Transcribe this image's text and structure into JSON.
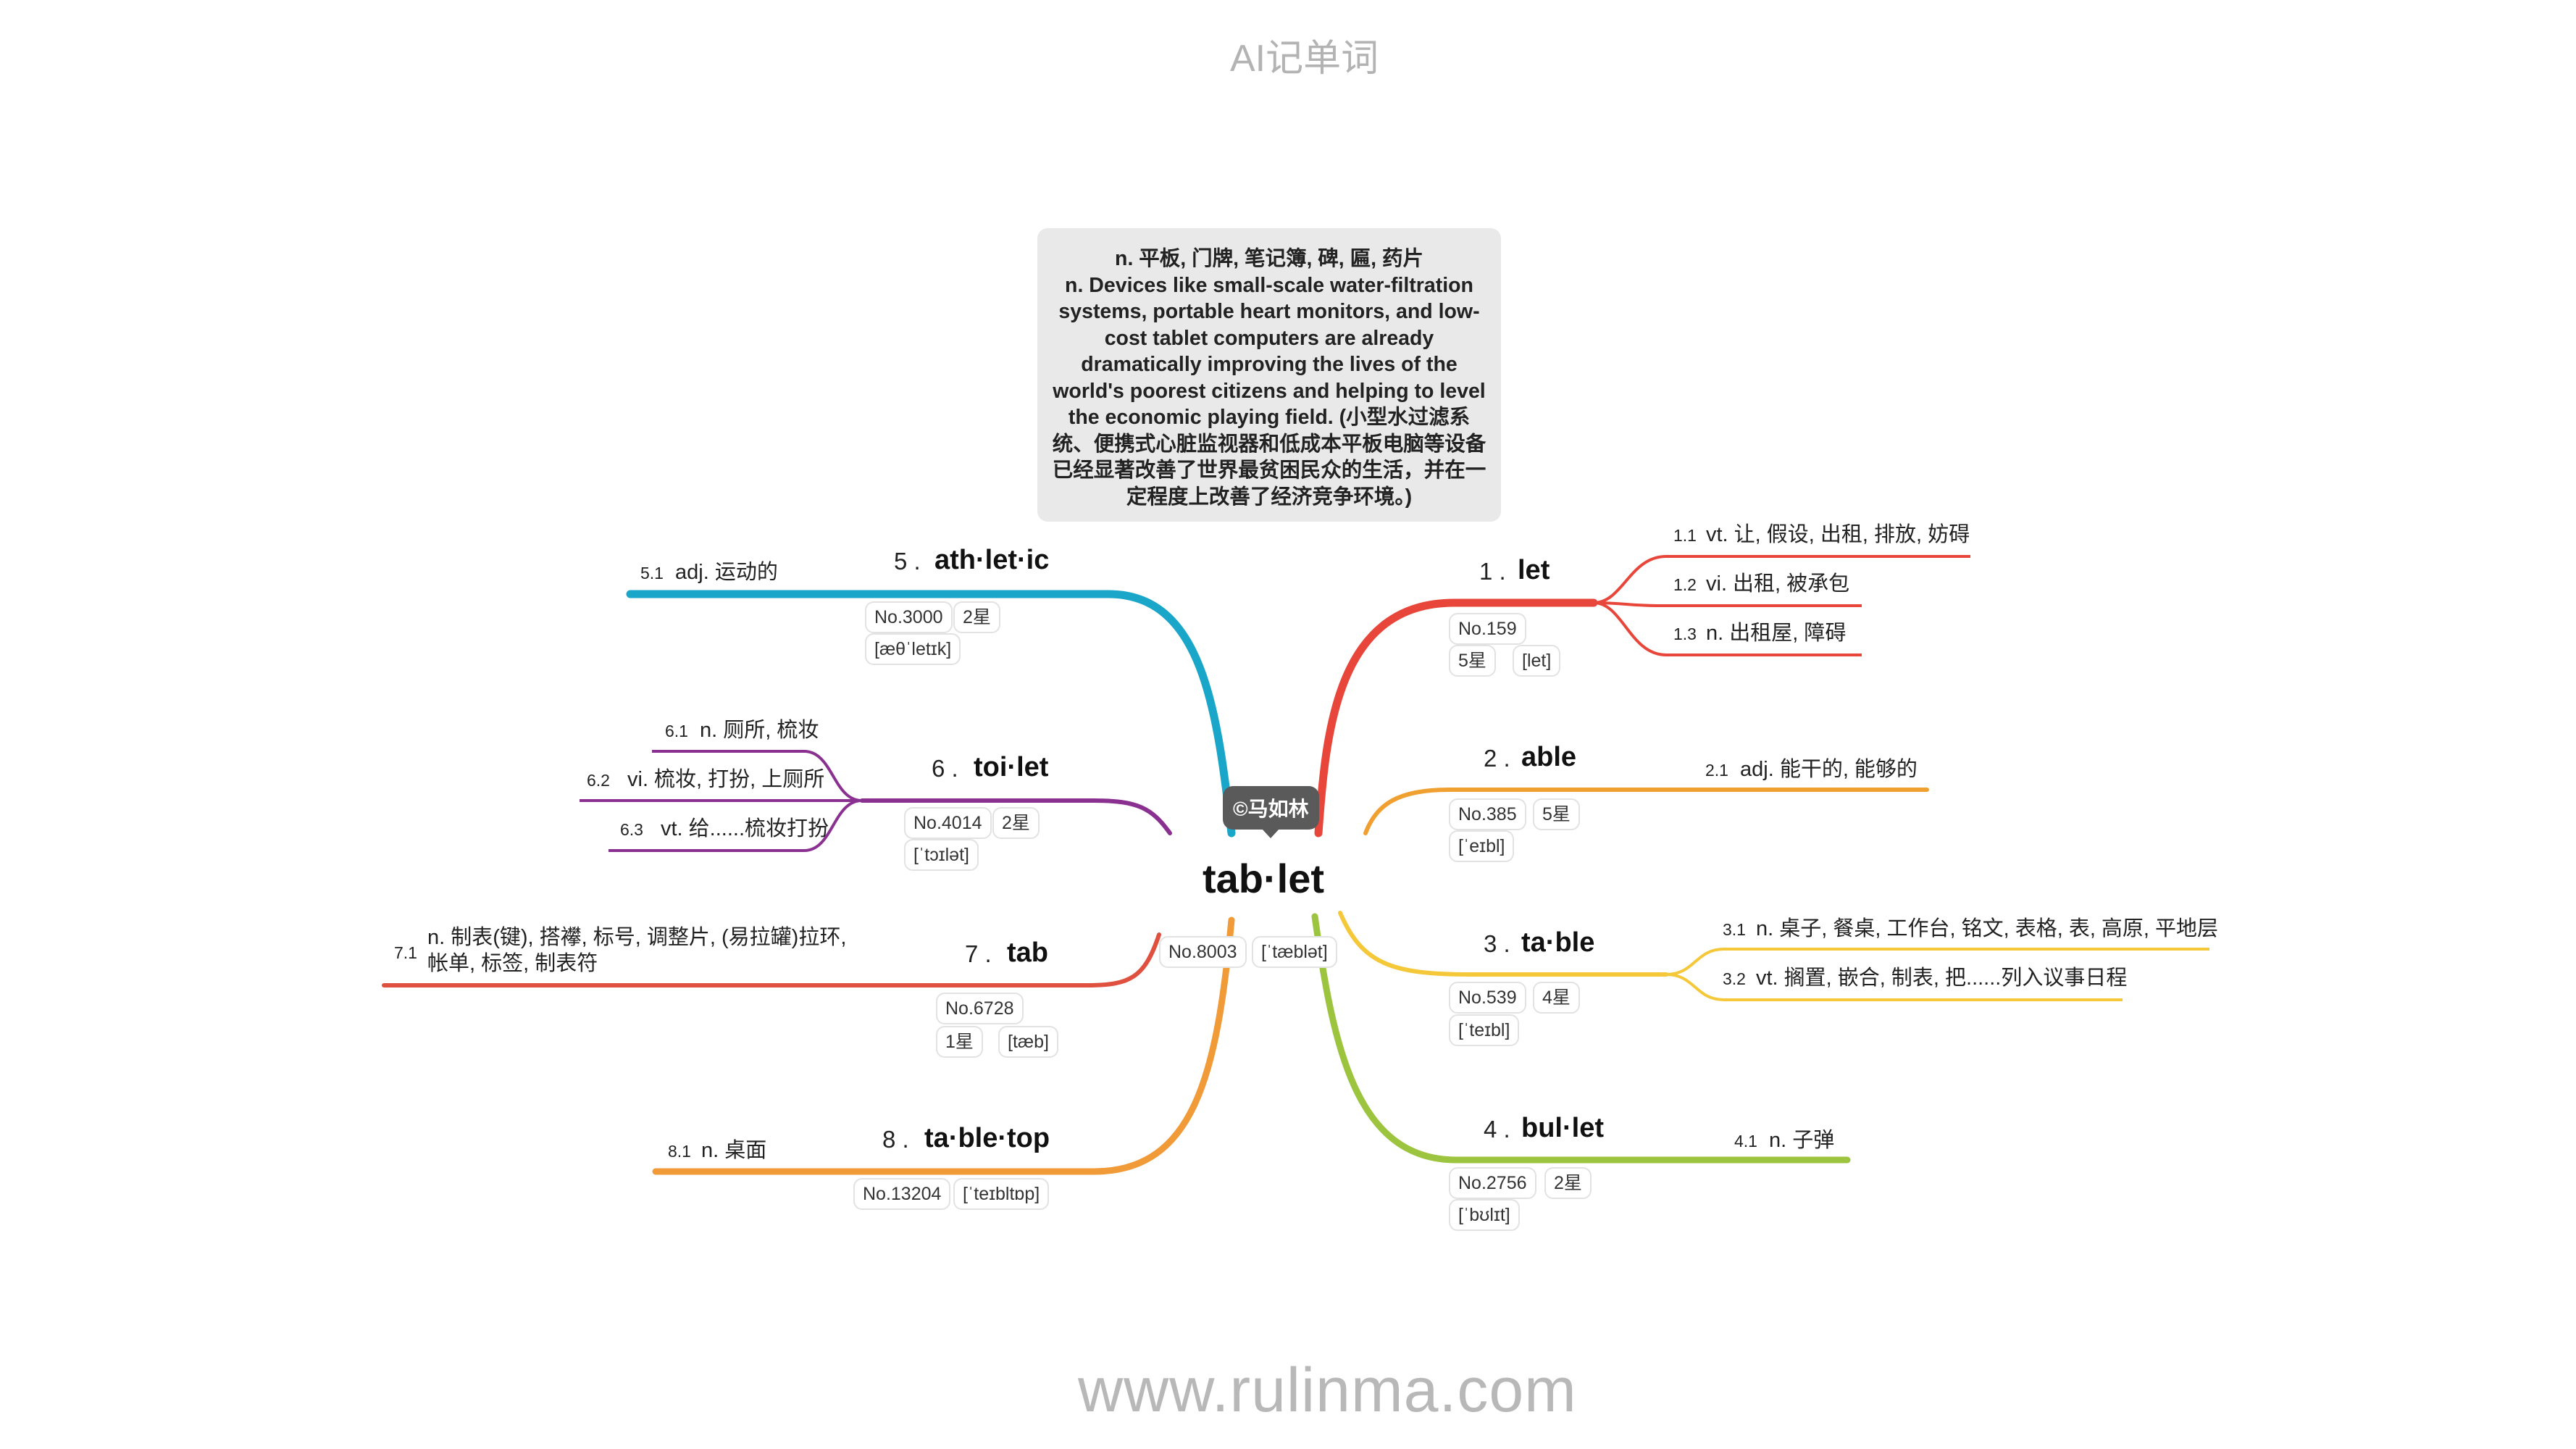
{
  "header": {
    "title": "AI记单词"
  },
  "footer": {
    "url": "www.rulinma.com"
  },
  "definition": {
    "line1": "n. 平板, 门牌, 笔记簿, 碑, 匾, 药片",
    "line2": "n. Devices like small-scale water-filtration systems, portable heart monitors, and low-cost tablet computers are already dramatically improving the lives of the world's poorest citizens and helping to level the economic playing field. (小型水过滤系统、便携式心脏监视器和低成本平板电脑等设备已经显著改善了世界最贫困民众的生活，并在一定程度上改善了经济竞争环境。)"
  },
  "center": {
    "word": "tab·let",
    "author": "©马如林",
    "no": "No.8003",
    "phonetic": "[ˈtæblət]"
  },
  "colors": {
    "b1": "#e8463a",
    "b2": "#f0a030",
    "b3": "#f5c83a",
    "b4": "#9cc43e",
    "b5": "#1aa6c8",
    "b6": "#8a3090",
    "b7": "#e0503e",
    "b8": "#f09a38"
  },
  "branches": [
    {
      "num": "1 .",
      "word": "let",
      "tags": [
        "No.159",
        "5星",
        "[let]"
      ],
      "senses": [
        {
          "num": "1.1",
          "text": "vt. 让, 假设, 出租, 排放, 妨碍"
        },
        {
          "num": "1.2",
          "text": "vi. 出租, 被承包"
        },
        {
          "num": "1.3",
          "text": "n. 出租屋, 障碍"
        }
      ]
    },
    {
      "num": "2 .",
      "word": "able",
      "tags": [
        "No.385",
        "5星",
        "[ˈeɪbl]"
      ],
      "senses": [
        {
          "num": "2.1",
          "text": "adj. 能干的, 能够的"
        }
      ]
    },
    {
      "num": "3 .",
      "word": "ta·ble",
      "tags": [
        "No.539",
        "4星",
        "[ˈteɪbl]"
      ],
      "senses": [
        {
          "num": "3.1",
          "text": "n. 桌子, 餐桌, 工作台, 铭文, 表格, 表, 高原, 平地层"
        },
        {
          "num": "3.2",
          "text": "vt. 搁置, 嵌合, 制表, 把......列入议事日程"
        }
      ]
    },
    {
      "num": "4 .",
      "word": "bul·let",
      "tags": [
        "No.2756",
        "2星",
        "[ˈbʊlɪt]"
      ],
      "senses": [
        {
          "num": "4.1",
          "text": "n. 子弹"
        }
      ]
    },
    {
      "num": "5 .",
      "word": "ath·let·ic",
      "tags": [
        "No.3000",
        "2星",
        "[æθˈletɪk]"
      ],
      "senses": [
        {
          "num": "5.1",
          "text": "adj. 运动的"
        }
      ]
    },
    {
      "num": "6 .",
      "word": "toi·let",
      "tags": [
        "No.4014",
        "2星",
        "[ˈtɔɪlət]"
      ],
      "senses": [
        {
          "num": "6.1",
          "text": "n. 厕所, 梳妆"
        },
        {
          "num": "6.2",
          "text": "vi. 梳妆, 打扮, 上厕所"
        },
        {
          "num": "6.3",
          "text": "vt. 给......梳妆打扮"
        }
      ]
    },
    {
      "num": "7 .",
      "word": "tab",
      "tags": [
        "No.6728",
        "1星",
        "[tæb]"
      ],
      "senses": [
        {
          "num": "7.1",
          "text": "n. 制表(键), 搭襻, 标号, 调整片, (易拉罐)拉环, 帐单, 标签, 制表符"
        }
      ]
    },
    {
      "num": "8 .",
      "word": "ta·ble·top",
      "tags": [
        "No.13204",
        "[ˈteɪbltɒp]"
      ],
      "senses": [
        {
          "num": "8.1",
          "text": "n. 桌面"
        }
      ]
    }
  ]
}
